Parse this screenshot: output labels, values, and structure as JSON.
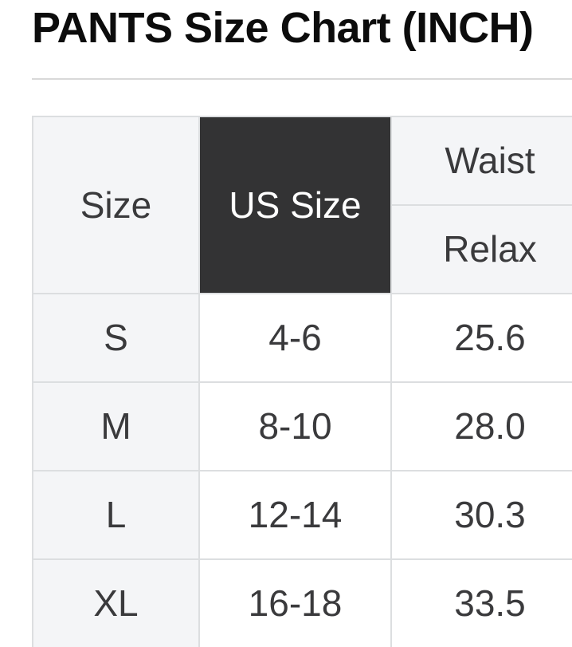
{
  "page_title": "PANTS Size Chart (INCH)",
  "colors": {
    "dark_cell_bg": "#333334",
    "dark_cell_text": "#ffffff",
    "header_cell_bg": "#f4f5f7",
    "border": "#dcdee0",
    "body_text": "#3a3a3c",
    "title_text": "#0c0c0c",
    "divider": "#d9d9d9"
  },
  "table": {
    "headers": {
      "size": "Size",
      "us_size": "US Size",
      "waist": "Waist",
      "relax": "Relax"
    },
    "rows": [
      {
        "size": "S",
        "us_size": "4-6",
        "waist_relax": "25.6"
      },
      {
        "size": "M",
        "us_size": "8-10",
        "waist_relax": "28.0"
      },
      {
        "size": "L",
        "us_size": "12-14",
        "waist_relax": "30.3"
      },
      {
        "size": "XL",
        "us_size": "16-18",
        "waist_relax": "33.5"
      }
    ]
  }
}
